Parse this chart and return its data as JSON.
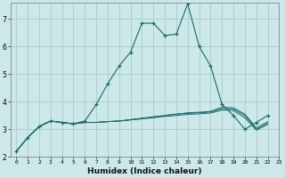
{
  "background_color": "#cce8e8",
  "grid_color": "#aacccc",
  "line_color": "#1a6b6b",
  "xlabel": "Humidex (Indice chaleur)",
  "xlim": [
    -0.5,
    23
  ],
  "ylim": [
    2,
    7.6
  ],
  "yticks": [
    2,
    3,
    4,
    5,
    6,
    7
  ],
  "xticks": [
    0,
    1,
    2,
    3,
    4,
    5,
    6,
    7,
    8,
    9,
    10,
    11,
    12,
    13,
    14,
    15,
    16,
    17,
    18,
    19,
    20,
    21,
    22,
    23
  ],
  "series_main": [
    2.2,
    2.7,
    3.1,
    3.3,
    3.25,
    3.2,
    3.3,
    3.9,
    4.65,
    5.3,
    5.8,
    6.85,
    6.85,
    6.4,
    6.45,
    7.55,
    6.0,
    5.3,
    3.9,
    3.5,
    3.0,
    3.25,
    3.5
  ],
  "series_flat1": [
    2.2,
    2.7,
    3.1,
    3.3,
    3.25,
    3.2,
    3.25,
    3.25,
    3.28,
    3.3,
    3.35,
    3.4,
    3.45,
    3.5,
    3.55,
    3.6,
    3.62,
    3.65,
    3.8,
    3.78,
    3.55,
    3.05,
    3.28
  ],
  "series_flat2": [
    2.2,
    2.7,
    3.1,
    3.3,
    3.25,
    3.2,
    3.25,
    3.25,
    3.28,
    3.3,
    3.35,
    3.4,
    3.45,
    3.5,
    3.55,
    3.58,
    3.6,
    3.63,
    3.75,
    3.73,
    3.5,
    3.0,
    3.22
  ],
  "series_flat3": [
    2.2,
    2.7,
    3.1,
    3.3,
    3.25,
    3.2,
    3.25,
    3.25,
    3.28,
    3.3,
    3.34,
    3.38,
    3.42,
    3.47,
    3.5,
    3.54,
    3.56,
    3.59,
    3.7,
    3.68,
    3.42,
    2.97,
    3.18
  ]
}
